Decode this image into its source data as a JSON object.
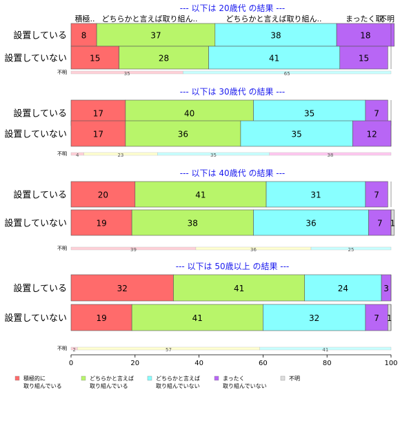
{
  "chart_data": {
    "type": "bar",
    "orientation": "horizontal-stacked-percent",
    "xlim": [
      0,
      100
    ],
    "x_ticks": [
      "0",
      "20",
      "40",
      "60",
      "80",
      "100"
    ],
    "column_headers": [
      "積極..",
      "どちらかと言えば取り組ん..",
      "どちらかと言えば取り組ん..",
      "まったく取.",
      "不明"
    ],
    "legend": [
      {
        "line1": "積極的に",
        "line2": "取り組んでいる",
        "color": "#ff6b6b"
      },
      {
        "line1": "どちらかと言えば",
        "line2": "取り組んでいる",
        "color": "#b8f56a"
      },
      {
        "line1": "どちらかと言えば",
        "line2": "取り組んでいない",
        "color": "#88ffff"
      },
      {
        "line1": "まったく",
        "line2": "取り組んでいない",
        "color": "#b866f5"
      },
      {
        "line1": "不明",
        "line2": "",
        "color": "#dddddd"
      }
    ],
    "groups": [
      {
        "title": "--- 以下は 20歳代 の結果 ---",
        "rows": [
          {
            "label": "設置している",
            "values": [
              8,
              37,
              38,
              18,
              0
            ]
          },
          {
            "label": "設置していない",
            "values": [
              15,
              28,
              41,
              15,
              0
            ]
          }
        ],
        "unknown": {
          "label": "不明",
          "values": [
            35,
            65
          ]
        }
      },
      {
        "title": "--- 以下は 30歳代 の結果 ---",
        "rows": [
          {
            "label": "設置している",
            "values": [
              17,
              40,
              35,
              7,
              0
            ]
          },
          {
            "label": "設置していない",
            "values": [
              17,
              36,
              35,
              12,
              0
            ]
          }
        ],
        "unknown": {
          "label": "不明",
          "values": [
            4,
            23,
            35,
            38
          ]
        }
      },
      {
        "title": "--- 以下は 40歳代 の結果 ---",
        "rows": [
          {
            "label": "設置している",
            "values": [
              20,
              41,
              31,
              7,
              0
            ]
          },
          {
            "label": "設置していない",
            "values": [
              19,
              38,
              36,
              7,
              1
            ]
          }
        ],
        "unknown": {
          "label": "不明",
          "values": [
            39,
            36,
            25
          ]
        }
      },
      {
        "title": "--- 以下は 50歳以上 の結果 ---",
        "rows": [
          {
            "label": "設置している",
            "values": [
              32,
              41,
              24,
              3,
              0
            ]
          },
          {
            "label": "設置していない",
            "values": [
              19,
              41,
              32,
              7,
              1
            ]
          }
        ],
        "unknown": {
          "label": "不明",
          "values": [
            2,
            57,
            41
          ]
        }
      }
    ]
  }
}
